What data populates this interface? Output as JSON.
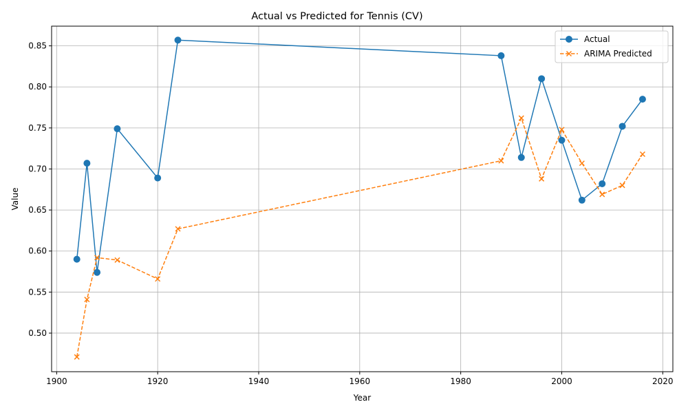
{
  "chart_data": {
    "type": "line",
    "title": "Actual vs Predicted for Tennis (CV)",
    "xlabel": "Year",
    "ylabel": "Value",
    "xlim": [
      1899,
      2022
    ],
    "ylim": [
      0.453,
      0.874
    ],
    "xticks": [
      1900,
      1920,
      1940,
      1960,
      1980,
      2000,
      2020
    ],
    "yticks": [
      0.5,
      0.55,
      0.6,
      0.65,
      0.7,
      0.75,
      0.8,
      0.85
    ],
    "grid": true,
    "legend_position": "top-right",
    "x": [
      1904,
      1906,
      1908,
      1912,
      1920,
      1924,
      1988,
      1992,
      1996,
      2000,
      2004,
      2008,
      2012,
      2016
    ],
    "series": [
      {
        "name": "Actual",
        "color": "#1f77b4",
        "marker": "circle",
        "linestyle": "solid",
        "values": [
          0.59,
          0.707,
          0.574,
          0.749,
          0.689,
          0.857,
          0.838,
          0.714,
          0.81,
          0.735,
          0.662,
          0.682,
          0.752,
          0.785
        ]
      },
      {
        "name": "ARIMA Predicted",
        "color": "#ff7f0e",
        "marker": "x",
        "linestyle": "dashed",
        "values": [
          0.471,
          0.541,
          0.592,
          0.589,
          0.566,
          0.627,
          0.71,
          0.762,
          0.688,
          0.748,
          0.707,
          0.669,
          0.68,
          0.718
        ]
      }
    ]
  }
}
